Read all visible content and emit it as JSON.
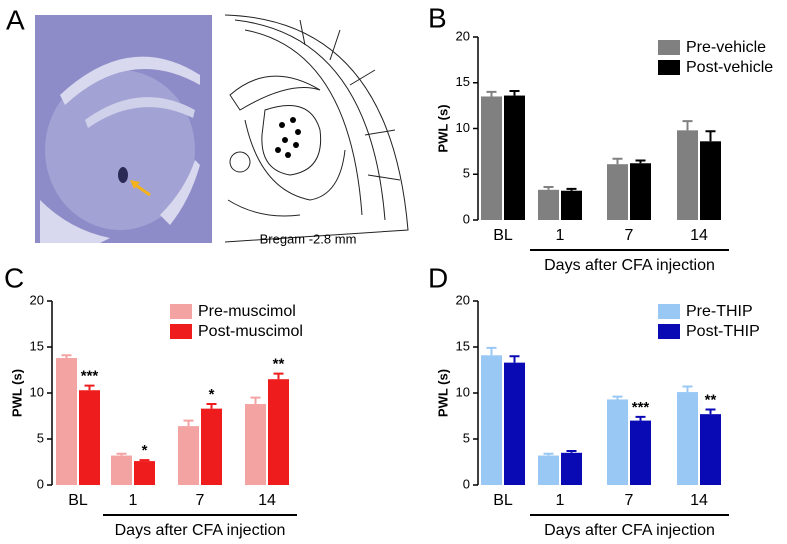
{
  "panel_a": {
    "label": "A",
    "caption": "Bregam -2.8 mm"
  },
  "chart_data": [
    {
      "type": "bar",
      "panel_label": "B",
      "ylabel": "PWL (s)",
      "xlabel": "Days after CFA injection",
      "categories": [
        "BL",
        "1",
        "7",
        "14"
      ],
      "ylim": [
        0,
        20
      ],
      "yticks": [
        0,
        5,
        10,
        15,
        20
      ],
      "legend": "upper right",
      "series": [
        {
          "name": "Pre-vehicle",
          "color": "#808080",
          "values": [
            13.5,
            3.3,
            6.1,
            9.8
          ],
          "errors": [
            0.5,
            0.3,
            0.6,
            1.0
          ]
        },
        {
          "name": "Post-vehicle",
          "color": "#000000",
          "values": [
            13.6,
            3.2,
            6.2,
            8.6
          ],
          "errors": [
            0.5,
            0.2,
            0.3,
            1.1
          ]
        }
      ]
    },
    {
      "type": "bar",
      "panel_label": "C",
      "ylabel": "PWL (s)",
      "xlabel": "Days after CFA injection",
      "categories": [
        "BL",
        "1",
        "7",
        "14"
      ],
      "ylim": [
        0,
        20
      ],
      "yticks": [
        0,
        5,
        10,
        15,
        20
      ],
      "legend": "upper center",
      "series": [
        {
          "name": "Pre-muscimol",
          "color": "#f4a3a3",
          "values": [
            13.8,
            3.2,
            6.4,
            8.8
          ],
          "errors": [
            0.3,
            0.2,
            0.6,
            0.7
          ]
        },
        {
          "name": "Post-muscimol",
          "color": "#ee1c1c",
          "values": [
            10.3,
            2.6,
            8.3,
            11.5
          ],
          "errors": [
            0.5,
            0.1,
            0.5,
            0.6
          ],
          "annotations": [
            "***",
            "*",
            "*",
            "**"
          ]
        }
      ]
    },
    {
      "type": "bar",
      "panel_label": "D",
      "ylabel": "PWL (s)",
      "xlabel": "Days after CFA injection",
      "categories": [
        "BL",
        "1",
        "7",
        "14"
      ],
      "ylim": [
        0,
        20
      ],
      "yticks": [
        0,
        5,
        10,
        15,
        20
      ],
      "legend": "upper right",
      "series": [
        {
          "name": "Pre-THIP",
          "color": "#99c8f5",
          "values": [
            14.1,
            3.2,
            9.3,
            10.1
          ],
          "errors": [
            0.8,
            0.2,
            0.3,
            0.6
          ]
        },
        {
          "name": "Post-THIP",
          "color": "#0a0ab4",
          "values": [
            13.3,
            3.5,
            7.0,
            7.7
          ],
          "errors": [
            0.7,
            0.2,
            0.4,
            0.5
          ],
          "annotations": [
            null,
            null,
            "***",
            "**"
          ]
        }
      ]
    }
  ]
}
